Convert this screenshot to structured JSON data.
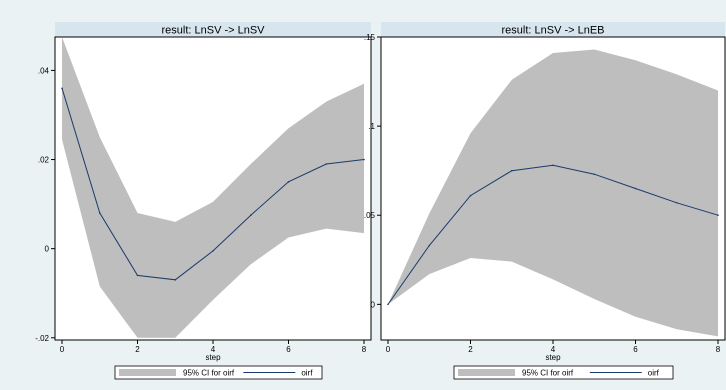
{
  "chart_data": [
    {
      "type": "line",
      "title": "result: LnSV -> LnSV",
      "xlabel": "step",
      "ylabel": "",
      "x": [
        0,
        1,
        2,
        3,
        4,
        5,
        6,
        7,
        8
      ],
      "xticks": [
        "0",
        "2",
        "4",
        "6",
        "8"
      ],
      "yticks": [
        "-.02",
        "0",
        ".02",
        ".04"
      ],
      "ylim": [
        -0.0205,
        0.0475
      ],
      "grid": false,
      "series": [
        {
          "name": "oirf",
          "values": [
            0.036,
            0.008,
            -0.006,
            -0.007,
            -0.0005,
            0.0075,
            0.015,
            0.019,
            0.02
          ],
          "color": "#1b3a6b"
        },
        {
          "name": "95% CI for oirf",
          "lower": [
            0.0245,
            -0.0085,
            -0.02,
            -0.02,
            -0.0115,
            -0.0035,
            0.0025,
            0.0045,
            0.0035
          ],
          "upper": [
            0.0475,
            0.025,
            0.008,
            0.006,
            0.0105,
            0.019,
            0.027,
            0.033,
            0.037
          ],
          "color": "#bebebe"
        }
      ],
      "legend": [
        "95% CI for oirf",
        "oirf"
      ]
    },
    {
      "type": "line",
      "title": "result: LnSV -> LnEB",
      "xlabel": "step",
      "ylabel": "",
      "x": [
        0,
        1,
        2,
        3,
        4,
        5,
        6,
        7,
        8
      ],
      "xticks": [
        "0",
        "2",
        "4",
        "6",
        "8"
      ],
      "yticks": [
        "0",
        ".05",
        ".1",
        ".15"
      ],
      "ylim": [
        -0.02,
        0.15
      ],
      "grid": false,
      "series": [
        {
          "name": "oirf",
          "values": [
            0.0,
            0.033,
            0.061,
            0.075,
            0.078,
            0.073,
            0.065,
            0.057,
            0.05
          ],
          "color": "#1b3a6b"
        },
        {
          "name": "95% CI for oirf",
          "lower": [
            0.0,
            0.017,
            0.026,
            0.024,
            0.014,
            0.003,
            -0.007,
            -0.014,
            -0.018
          ],
          "upper": [
            0.0,
            0.051,
            0.096,
            0.126,
            0.141,
            0.143,
            0.137,
            0.129,
            0.12
          ],
          "color": "#bebebe"
        }
      ],
      "legend": [
        "95% CI for oirf",
        "oirf"
      ]
    }
  ]
}
